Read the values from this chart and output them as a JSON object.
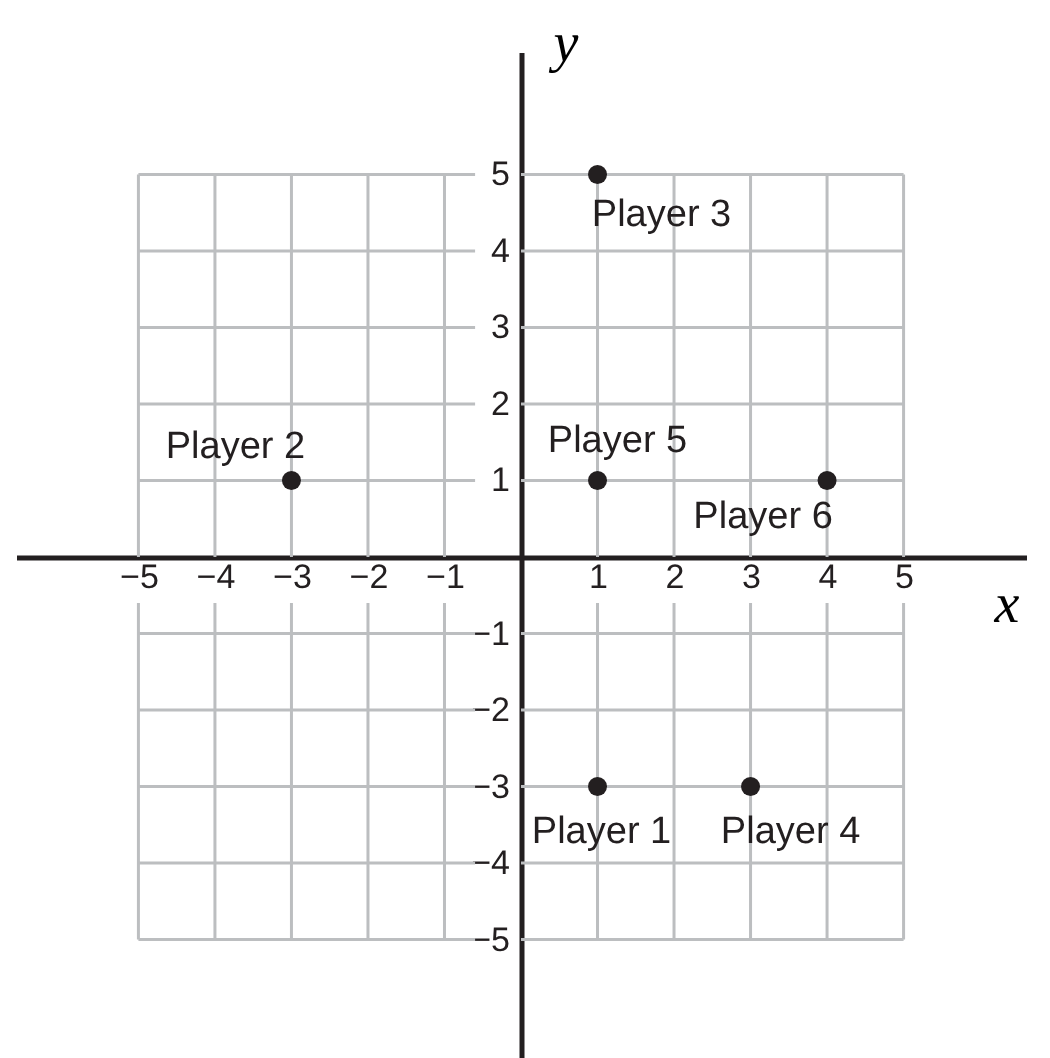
{
  "chart_data": {
    "type": "scatter",
    "xlabel": "x",
    "ylabel": "y",
    "x": [
      1,
      -3,
      1,
      3,
      1,
      4
    ],
    "values": [
      -3,
      1,
      5,
      -3,
      1,
      1
    ],
    "color": "#231f20",
    "marker": "circle",
    "xlim": [
      -6.6,
      6.6
    ],
    "ylim": [
      -6.6,
      6.6
    ],
    "xticks": [
      -5,
      -4,
      -3,
      -2,
      -1,
      1,
      2,
      3,
      4,
      5
    ],
    "yticks": [
      -5,
      -4,
      -3,
      -2,
      -1,
      1,
      2,
      3,
      4,
      5
    ],
    "grid": true,
    "annotations": [
      {
        "text": "Player 1",
        "x": 1,
        "y": -3
      },
      {
        "text": "Player 2",
        "x": -3,
        "y": 1
      },
      {
        "text": "Player 3",
        "x": 1,
        "y": 5
      },
      {
        "text": "Player 4",
        "x": 3,
        "y": -3
      },
      {
        "text": "Player 5",
        "x": 1,
        "y": 1
      },
      {
        "text": "Player 6",
        "x": 4,
        "y": 1
      }
    ]
  }
}
